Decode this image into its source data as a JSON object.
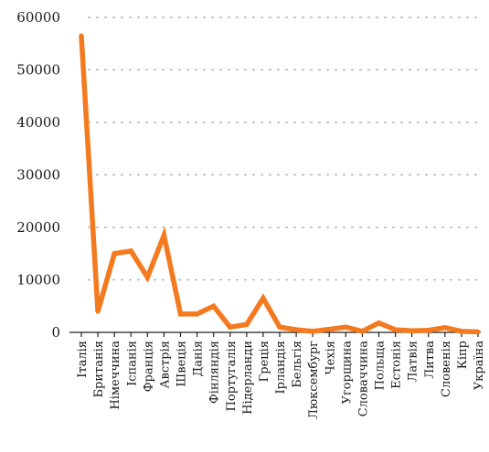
{
  "chart_data": {
    "type": "line",
    "title": "",
    "xlabel": "",
    "ylabel": "",
    "ylim": [
      0,
      60000
    ],
    "yticks": [
      0,
      10000,
      20000,
      30000,
      40000,
      50000,
      60000
    ],
    "grid": "horizontal-dashed",
    "legend": "none",
    "categories": [
      "Італія",
      "Британія",
      "Німеччина",
      "Іспанія",
      "Франція",
      "Австрія",
      "Швеція",
      "Данія",
      "Фінляндія",
      "Португалія",
      "Нідерланди",
      "Греція",
      "Ірландія",
      "Бельгія",
      "Люксембург",
      "Чехія",
      "Угорщина",
      "Словаччина",
      "Польща",
      "Естонія",
      "Латвія",
      "Литва",
      "Словенія",
      "Кіпр",
      "Україна"
    ],
    "series": [
      {
        "color": "#F47A20",
        "values": [
          56500,
          4000,
          15000,
          15500,
          10500,
          18500,
          3500,
          3500,
          5000,
          1000,
          1500,
          6500,
          1000,
          500,
          200,
          600,
          1000,
          200,
          1800,
          500,
          300,
          400,
          900,
          200,
          100
        ]
      }
    ]
  }
}
